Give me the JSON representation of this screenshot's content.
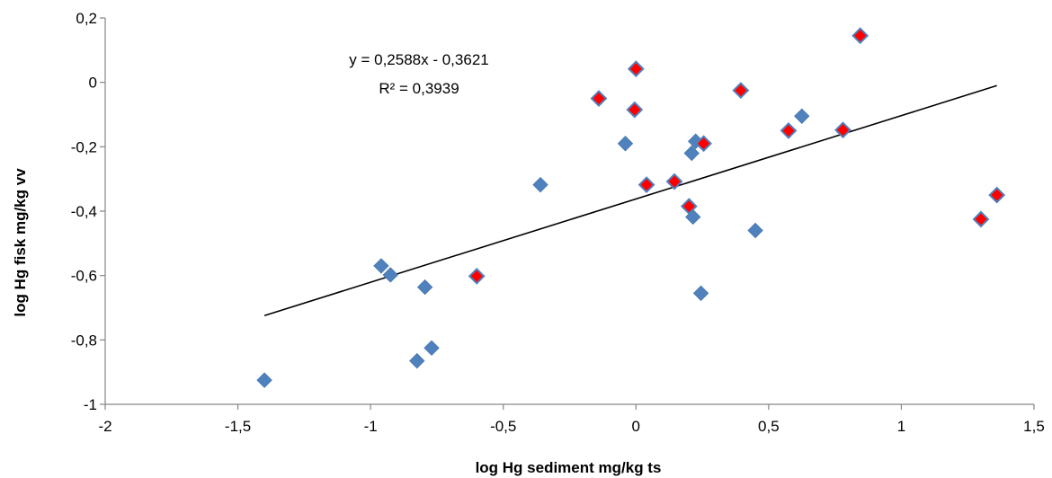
{
  "chart_data": {
    "type": "scatter",
    "title": "",
    "xlabel": "log Hg sediment mg/kg ts",
    "ylabel": "log Hg fisk mg/kg vv",
    "xlim": [
      -2,
      1.5
    ],
    "ylim": [
      -1,
      0.2
    ],
    "xticks": [
      -2,
      -1.5,
      -1,
      -0.5,
      0,
      0.5,
      1,
      1.5
    ],
    "yticks": [
      -1,
      -0.8,
      -0.6,
      -0.4,
      -0.2,
      0,
      0.2
    ],
    "xtick_labels": [
      "-2",
      "-1,5",
      "-1",
      "-0,5",
      "0",
      "0,5",
      "1",
      "1,5"
    ],
    "ytick_labels": [
      "-1",
      "-0,8",
      "-0,6",
      "-0,4",
      "-0,2",
      "0",
      "0,2"
    ],
    "grid": false,
    "legend": "none",
    "series": [
      {
        "marker": "diamond",
        "color": "#4f81bd",
        "points": [
          [
            -1.4,
            -0.925
          ],
          [
            -0.96,
            -0.57
          ],
          [
            -0.925,
            -0.598
          ],
          [
            -0.795,
            -0.636
          ],
          [
            -0.825,
            -0.865
          ],
          [
            -0.77,
            -0.825
          ],
          [
            -0.36,
            -0.318
          ],
          [
            -0.04,
            -0.19
          ],
          [
            0.21,
            -0.22
          ],
          [
            0.225,
            -0.183
          ],
          [
            0.215,
            -0.418
          ],
          [
            0.245,
            -0.655
          ],
          [
            0.45,
            -0.46
          ],
          [
            0.625,
            -0.105
          ]
        ]
      },
      {
        "marker": "diamond",
        "color": "#ff0000",
        "border": "#4f81bd",
        "points": [
          [
            -0.6,
            -0.602
          ],
          [
            -0.14,
            -0.05
          ],
          [
            0.0,
            0.042
          ],
          [
            -0.005,
            -0.085
          ],
          [
            0.04,
            -0.318
          ],
          [
            0.145,
            -0.308
          ],
          [
            0.2,
            -0.385
          ],
          [
            0.255,
            -0.19
          ],
          [
            0.395,
            -0.025
          ],
          [
            0.575,
            -0.15
          ],
          [
            0.78,
            -0.148
          ],
          [
            0.845,
            0.145
          ],
          [
            1.3,
            -0.425
          ],
          [
            1.36,
            -0.35
          ]
        ]
      }
    ],
    "trendline": {
      "slope": 0.2588,
      "intercept": -0.3621,
      "x_range": [
        -1.4,
        1.36
      ],
      "equation": "y = 0,2588x - 0,3621",
      "r_squared": "R² = 0,3939"
    }
  }
}
